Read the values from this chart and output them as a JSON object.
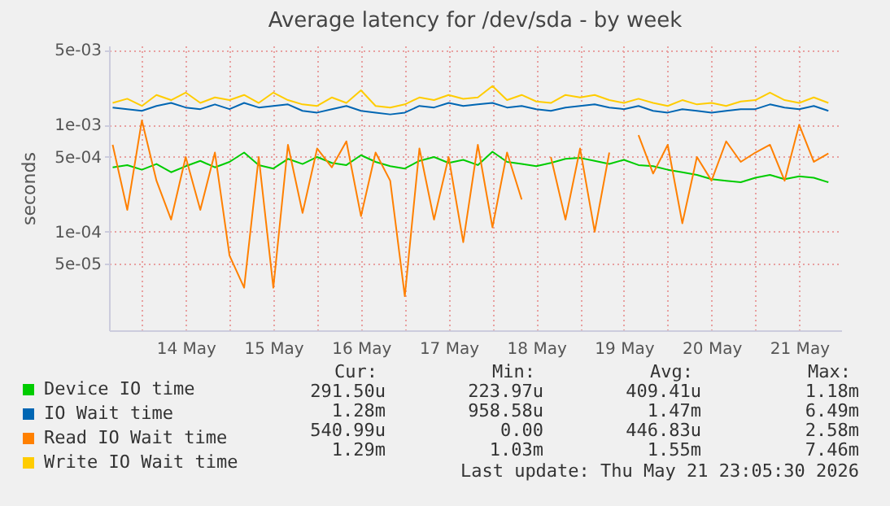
{
  "chart_data": {
    "type": "line",
    "title": "Average latency for /dev/sda - by week",
    "ylabel": "seconds",
    "log": "y",
    "grid": true,
    "legend": "bottom",
    "marker": "none",
    "line_style": "solid",
    "x": [
      "2026-05-13T16:00",
      "2026-05-13T20:00",
      "2026-05-14T00:00",
      "2026-05-14T04:00",
      "2026-05-14T08:00",
      "2026-05-14T12:00",
      "2026-05-14T16:00",
      "2026-05-14T20:00",
      "2026-05-15T00:00",
      "2026-05-15T04:00",
      "2026-05-15T08:00",
      "2026-05-15T12:00",
      "2026-05-15T16:00",
      "2026-05-15T20:00",
      "2026-05-16T00:00",
      "2026-05-16T04:00",
      "2026-05-16T08:00",
      "2026-05-16T12:00",
      "2026-05-16T16:00",
      "2026-05-16T20:00",
      "2026-05-17T00:00",
      "2026-05-17T04:00",
      "2026-05-17T08:00",
      "2026-05-17T12:00",
      "2026-05-17T16:00",
      "2026-05-17T20:00",
      "2026-05-18T00:00",
      "2026-05-18T04:00",
      "2026-05-18T08:00",
      "2026-05-18T12:00",
      "2026-05-18T16:00",
      "2026-05-18T20:00",
      "2026-05-19T00:00",
      "2026-05-19T04:00",
      "2026-05-19T08:00",
      "2026-05-19T12:00",
      "2026-05-19T16:00",
      "2026-05-19T20:00",
      "2026-05-20T00:00",
      "2026-05-20T04:00",
      "2026-05-20T08:00",
      "2026-05-20T12:00",
      "2026-05-20T16:00",
      "2026-05-20T20:00",
      "2026-05-21T00:00",
      "2026-05-21T04:00",
      "2026-05-21T08:00",
      "2026-05-21T12:00",
      "2026-05-21T16:00",
      "2026-05-21T20:00"
    ],
    "xlim": [
      "2026-05-13T15:00",
      "2026-05-21T23:30"
    ],
    "xticks": [
      {
        "value": "2026-05-14T00:00",
        "label": null
      },
      {
        "value": "2026-05-14T12:00",
        "label": "14 May"
      },
      {
        "value": "2026-05-15T00:00",
        "label": null
      },
      {
        "value": "2026-05-15T12:00",
        "label": "15 May"
      },
      {
        "value": "2026-05-16T00:00",
        "label": null
      },
      {
        "value": "2026-05-16T12:00",
        "label": "16 May"
      },
      {
        "value": "2026-05-17T00:00",
        "label": null
      },
      {
        "value": "2026-05-17T12:00",
        "label": "17 May"
      },
      {
        "value": "2026-05-18T00:00",
        "label": null
      },
      {
        "value": "2026-05-18T12:00",
        "label": "18 May"
      },
      {
        "value": "2026-05-19T00:00",
        "label": null
      },
      {
        "value": "2026-05-19T12:00",
        "label": "19 May"
      },
      {
        "value": "2026-05-20T00:00",
        "label": null
      },
      {
        "value": "2026-05-20T12:00",
        "label": "20 May"
      },
      {
        "value": "2026-05-21T00:00",
        "label": null
      },
      {
        "value": "2026-05-21T12:00",
        "label": "21 May"
      }
    ],
    "ylim": [
      1.2e-05,
      0.0055
    ],
    "yticks": [
      {
        "value": 0.005,
        "label": "5e-03"
      },
      {
        "value": 0.001,
        "label": "1e-03"
      },
      {
        "value": 0.0005,
        "label": "5e-04"
      },
      {
        "value": 0.0001,
        "label": "1e-04"
      },
      {
        "value": 5e-05,
        "label": "5e-05"
      }
    ],
    "series": [
      {
        "name": "Device IO time",
        "color": "#00cc00",
        "values": [
          0.0004,
          0.00042,
          0.00038,
          0.00043,
          0.00036,
          0.00041,
          0.00046,
          0.0004,
          0.00045,
          0.00055,
          0.00042,
          0.00039,
          0.00048,
          0.00043,
          0.0005,
          0.00044,
          0.00042,
          0.00052,
          0.00045,
          0.00041,
          0.00039,
          0.00046,
          0.0005,
          0.00044,
          0.00047,
          0.00042,
          0.00056,
          0.00045,
          0.00043,
          0.00041,
          0.00044,
          0.00048,
          0.00049,
          0.00046,
          0.00043,
          0.00047,
          0.00042,
          0.00041,
          0.00038,
          0.00036,
          0.00034,
          0.00031,
          0.0003,
          0.00029,
          0.00032,
          0.00034,
          0.00031,
          0.00033,
          0.00032,
          0.00029
        ]
      },
      {
        "name": "IO Wait time",
        "color": "#0066b3",
        "values": [
          0.00145,
          0.0014,
          0.00135,
          0.0015,
          0.0016,
          0.00145,
          0.0014,
          0.00155,
          0.0014,
          0.0016,
          0.00145,
          0.0015,
          0.00155,
          0.00135,
          0.0013,
          0.0014,
          0.0015,
          0.00135,
          0.0013,
          0.00125,
          0.0013,
          0.0015,
          0.00145,
          0.0016,
          0.0015,
          0.00155,
          0.0016,
          0.00145,
          0.0015,
          0.0014,
          0.00135,
          0.00145,
          0.0015,
          0.00155,
          0.00145,
          0.0014,
          0.0015,
          0.00135,
          0.0013,
          0.0014,
          0.00135,
          0.0013,
          0.00135,
          0.0014,
          0.0014,
          0.00155,
          0.00145,
          0.0014,
          0.0015,
          0.00135
        ]
      },
      {
        "name": "Read IO Wait time",
        "color": "#ff8000",
        "values": [
          0.00065,
          0.00016,
          0.0011,
          0.0003,
          0.00013,
          0.0005,
          0.00016,
          0.00055,
          6e-05,
          3e-05,
          0.0005,
          3e-05,
          0.00065,
          0.00015,
          0.0006,
          0.0004,
          0.0007,
          0.00014,
          0.00055,
          0.0003,
          2.5e-05,
          0.0006,
          0.00013,
          0.0005,
          8e-05,
          0.00065,
          0.00011,
          0.00055,
          0.0002,
          null,
          0.0005,
          0.00013,
          0.0006,
          0.0001,
          0.00055,
          null,
          0.0008,
          0.00035,
          0.00065,
          0.00012,
          0.0005,
          0.0003,
          0.0007,
          0.00045,
          0.00055,
          0.00065,
          0.0003,
          0.001,
          0.00045,
          0.00054
        ]
      },
      {
        "name": "Write IO Wait time",
        "color": "#ffcc00",
        "values": [
          0.0016,
          0.00175,
          0.0015,
          0.0019,
          0.0017,
          0.002,
          0.0016,
          0.0018,
          0.0017,
          0.0019,
          0.0016,
          0.002,
          0.0017,
          0.00155,
          0.0015,
          0.0018,
          0.0016,
          0.0021,
          0.0015,
          0.00145,
          0.00155,
          0.0018,
          0.0017,
          0.0019,
          0.00175,
          0.0018,
          0.0023,
          0.0017,
          0.0019,
          0.00165,
          0.0016,
          0.0019,
          0.0018,
          0.0019,
          0.0017,
          0.0016,
          0.00175,
          0.0016,
          0.0015,
          0.0017,
          0.00155,
          0.0016,
          0.0015,
          0.00165,
          0.0017,
          0.002,
          0.0017,
          0.0016,
          0.0018,
          0.0016
        ]
      }
    ],
    "annotations": [
      "Cur:",
      "Min:",
      "Avg:",
      "Max:",
      "291.50u",
      "223.97u",
      "409.41u",
      "1.18m",
      "1.28m",
      "958.58u",
      "1.47m",
      "6.49m",
      "540.99u",
      "0.00",
      "446.83u",
      "2.58m",
      "1.29m",
      "1.03m",
      "1.55m",
      "7.46m",
      "Last update: Thu May 21 23:05:30 2026"
    ]
  }
}
